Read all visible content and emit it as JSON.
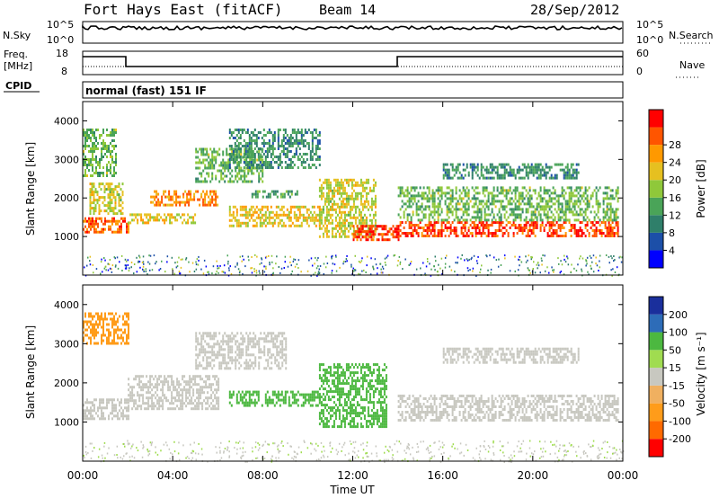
{
  "header": {
    "station": "Fort Hays East (fitACF)",
    "beam": "Beam 14",
    "date": "28/Sep/2012"
  },
  "panels": {
    "noise": {
      "left_label": "N.Sky",
      "right_label": "N.Search",
      "left_ticks": [
        "10^5",
        "10^0"
      ],
      "right_ticks": [
        "10^5",
        "10^0"
      ]
    },
    "freq": {
      "left_label_1": "Freq.",
      "left_label_2": "[MHz]",
      "right_label": "Nave",
      "left_ticks": [
        "18",
        "8"
      ],
      "right_ticks": [
        "60",
        "0"
      ]
    },
    "cpid": {
      "label": "CPID",
      "mode": "normal (fast) 151 IF"
    }
  },
  "colors": {
    "power": [
      "#0000ff",
      "#1c4fa8",
      "#2f7f6a",
      "#4aa458",
      "#8fc83a",
      "#e6c020",
      "#ff9900",
      "#ff5500",
      "#ff0000"
    ],
    "velocity": [
      "#ff0000",
      "#ff6a00",
      "#ff9c1a",
      "#f0b060",
      "#c8c8c0",
      "#a0dc50",
      "#4cb840",
      "#2d6cb8",
      "#1a2f9c"
    ]
  },
  "chart_data": [
    {
      "type": "heatmap",
      "title": "Power",
      "ylabel": "Slant Range [km]",
      "ylim": [
        0,
        4500
      ],
      "yticks": [
        1000,
        2000,
        3000,
        4000
      ],
      "xticks": [
        "00:00",
        "04:00",
        "08:00",
        "12:00",
        "16:00",
        "20:00",
        "00:00"
      ],
      "xlim_hours": [
        0,
        24
      ],
      "colorbar_label": "Power [dB]",
      "colorbar_ticks": [
        "4",
        "8",
        "12",
        "16",
        "20",
        "24",
        "28"
      ],
      "colorbar_range": [
        0,
        32
      ],
      "bands": [
        {
          "t": [
            0.0,
            2.0
          ],
          "r": [
            1100,
            1500
          ],
          "v": 26
        },
        {
          "t": [
            0.3,
            1.8
          ],
          "r": [
            1600,
            2400
          ],
          "v": 18
        },
        {
          "t": [
            0.0,
            1.5
          ],
          "r": [
            2600,
            3800
          ],
          "v": 14
        },
        {
          "t": [
            2.0,
            5.0
          ],
          "r": [
            1350,
            1600
          ],
          "v": 20
        },
        {
          "t": [
            3.0,
            6.0
          ],
          "r": [
            1800,
            2200
          ],
          "v": 24
        },
        {
          "t": [
            5.0,
            8.0
          ],
          "r": [
            2400,
            3300
          ],
          "v": 14
        },
        {
          "t": [
            6.5,
            10.5
          ],
          "r": [
            2800,
            3800
          ],
          "v": 10
        },
        {
          "t": [
            6.5,
            10.5
          ],
          "r": [
            1300,
            1800
          ],
          "v": 20
        },
        {
          "t": [
            7.5,
            9.5
          ],
          "r": [
            2000,
            2200
          ],
          "v": 12
        },
        {
          "t": [
            10.5,
            13.0
          ],
          "r": [
            1000,
            2500
          ],
          "v": 18
        },
        {
          "t": [
            12.0,
            14.0
          ],
          "r": [
            950,
            1300
          ],
          "v": 28
        },
        {
          "t": [
            14.0,
            23.8
          ],
          "r": [
            1050,
            1400
          ],
          "v": 28
        },
        {
          "t": [
            14.0,
            23.8
          ],
          "r": [
            1450,
            2300
          ],
          "v": 14
        },
        {
          "t": [
            16.0,
            22.0
          ],
          "r": [
            2500,
            2900
          ],
          "v": 10
        }
      ]
    },
    {
      "type": "heatmap",
      "title": "Velocity",
      "ylabel": "Slant Range [km]",
      "ylim": [
        0,
        4500
      ],
      "yticks": [
        1000,
        2000,
        3000,
        4000
      ],
      "xticks": [
        "00:00",
        "04:00",
        "08:00",
        "12:00",
        "16:00",
        "20:00",
        "00:00"
      ],
      "xlim_hours": [
        0,
        24
      ],
      "xlabel": "Time UT",
      "colorbar_label": "Velocity [m s⁻¹]",
      "colorbar_ticks": [
        "200",
        "100",
        "50",
        "15",
        "-15",
        "-50",
        "-100",
        "-200"
      ],
      "bands": [
        {
          "t": [
            0.0,
            2.0
          ],
          "r": [
            1100,
            1600
          ],
          "v": 0
        },
        {
          "t": [
            2.0,
            6.0
          ],
          "r": [
            1350,
            2200
          ],
          "v": 0
        },
        {
          "t": [
            5.0,
            9.0
          ],
          "r": [
            2400,
            3300
          ],
          "v": 0
        },
        {
          "t": [
            6.5,
            10.5
          ],
          "r": [
            1400,
            1800
          ],
          "v": 60
        },
        {
          "t": [
            10.5,
            13.5
          ],
          "r": [
            900,
            2500
          ],
          "v": 60
        },
        {
          "t": [
            14.0,
            23.8
          ],
          "r": [
            1050,
            1700
          ],
          "v": 0
        },
        {
          "t": [
            16.0,
            22.0
          ],
          "r": [
            2500,
            2900
          ],
          "v": 0
        },
        {
          "t": [
            0.0,
            2.0
          ],
          "r": [
            3000,
            3800
          ],
          "v": -80
        }
      ]
    }
  ]
}
